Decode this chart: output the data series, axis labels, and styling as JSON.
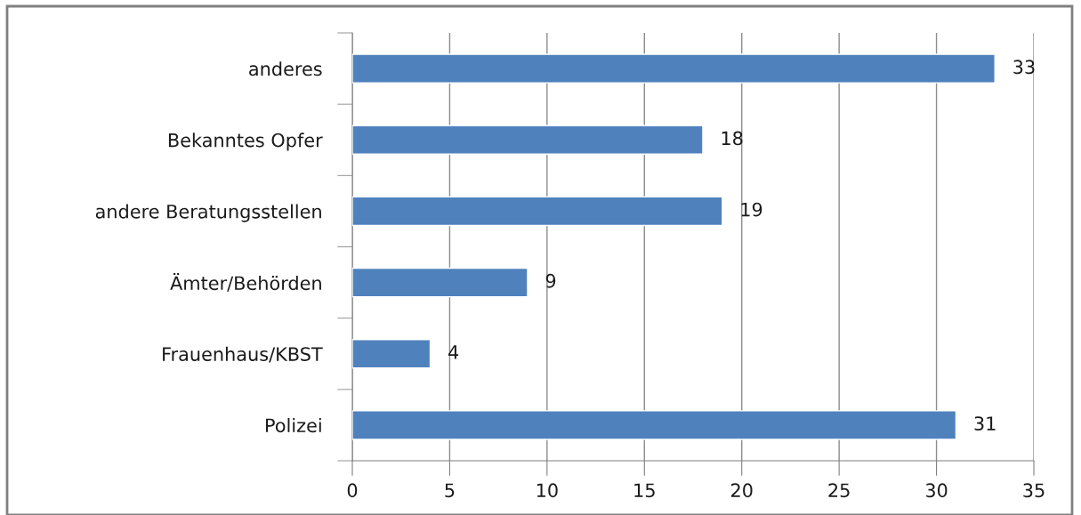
{
  "chart_data": {
    "type": "bar",
    "orientation": "horizontal",
    "categories": [
      "anderes",
      "Bekanntes Opfer",
      "andere Beratungsstellen",
      "Ämter/Behörden",
      "Frauenhaus/KBST",
      "Polizei"
    ],
    "values": [
      33,
      18,
      19,
      9,
      4,
      31
    ],
    "color": "#4f81bd",
    "xlim": [
      0,
      35
    ],
    "xticks": [
      0,
      5,
      10,
      15,
      20,
      25,
      30,
      35
    ],
    "grid": "x",
    "data_labels": true,
    "legend": false
  }
}
